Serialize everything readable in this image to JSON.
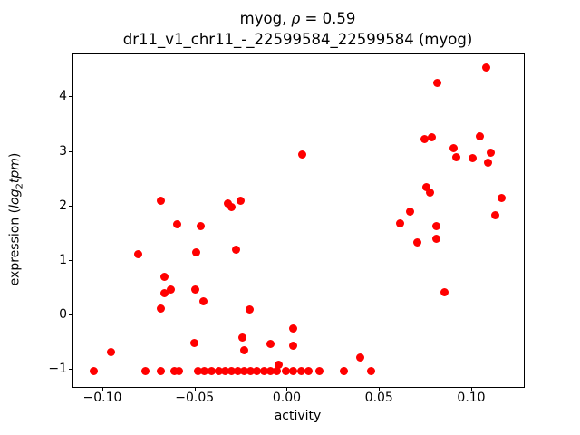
{
  "titles": {
    "line1_prefix": "myog, ",
    "line1_rho": "ρ",
    "line1_suffix": " = 0.59",
    "line2": "dr11_v1_chr11_-_22599584_22599584 (myog)",
    "ylabel_prefix": "expression (",
    "ylabel_math_main": "log",
    "ylabel_math_sub": "2",
    "ylabel_math_tail": "tpm",
    "ylabel_suffix": ")"
  },
  "chart_data": {
    "type": "scatter",
    "title": "myog, ρ = 0.59",
    "subtitle": "dr11_v1_chr11_-_22599584_22599584 (myog)",
    "xlabel": "activity",
    "ylabel": "expression (log2tpm)",
    "marker_color": "#ff0000",
    "marker_diameter_px": 9,
    "grid": false,
    "legend": null,
    "xlim": [
      -0.1162,
      0.128
    ],
    "ylim": [
      -1.315,
      4.79
    ],
    "xticks": {
      "values": [
        -0.1,
        -0.05,
        0.0,
        0.05,
        0.1
      ],
      "labels": [
        "−0.10",
        "−0.05",
        "0.00",
        "0.05",
        "0.10"
      ]
    },
    "yticks": {
      "values": [
        -1,
        0,
        1,
        2,
        3,
        4
      ],
      "labels": [
        "−1",
        "0",
        "1",
        "2",
        "3",
        "4"
      ]
    },
    "points": [
      [
        -0.105,
        -1.03
      ],
      [
        -0.096,
        -0.67
      ],
      [
        -0.081,
        1.13
      ],
      [
        -0.077,
        -1.03
      ],
      [
        -0.069,
        2.1
      ],
      [
        -0.0689,
        0.12
      ],
      [
        -0.0686,
        -1.03
      ],
      [
        -0.067,
        0.71
      ],
      [
        -0.0669,
        0.41
      ],
      [
        -0.0635,
        0.48
      ],
      [
        -0.0616,
        -1.03
      ],
      [
        -0.0599,
        1.67
      ],
      [
        -0.0591,
        -1.03
      ],
      [
        -0.0505,
        -0.5
      ],
      [
        -0.0499,
        0.47
      ],
      [
        -0.0495,
        1.16
      ],
      [
        -0.0486,
        -1.03
      ],
      [
        -0.0472,
        1.64
      ],
      [
        -0.0455,
        0.25
      ],
      [
        -0.0451,
        -1.03
      ],
      [
        -0.0412,
        -1.03
      ],
      [
        -0.0372,
        -1.03
      ],
      [
        -0.0338,
        -1.03
      ],
      [
        -0.0325,
        2.05
      ],
      [
        -0.0304,
        1.99
      ],
      [
        -0.0304,
        -1.03
      ],
      [
        -0.0282,
        1.2
      ],
      [
        -0.0269,
        -1.03
      ],
      [
        -0.0254,
        2.11
      ],
      [
        -0.0246,
        -0.41
      ],
      [
        -0.0238,
        -0.64
      ],
      [
        -0.0235,
        -1.03
      ],
      [
        -0.0205,
        0.1
      ],
      [
        -0.02,
        -1.03
      ],
      [
        -0.0166,
        -1.03
      ],
      [
        -0.0126,
        -1.03
      ],
      [
        -0.0093,
        -0.53
      ],
      [
        -0.0092,
        -1.03
      ],
      [
        -0.0058,
        -1.03
      ],
      [
        -0.0049,
        -0.91
      ],
      [
        -0.0008,
        -1.03
      ],
      [
        0.0031,
        -0.25
      ],
      [
        0.0031,
        -0.55
      ],
      [
        0.0031,
        -1.03
      ],
      [
        0.0075,
        -1.03
      ],
      [
        0.0077,
        2.95
      ],
      [
        0.0115,
        -1.03
      ],
      [
        0.0174,
        -1.03
      ],
      [
        0.0303,
        -1.03
      ],
      [
        0.0394,
        -0.78
      ],
      [
        0.0451,
        -1.03
      ],
      [
        0.061,
        1.69
      ],
      [
        0.0664,
        1.91
      ],
      [
        0.0705,
        1.34
      ],
      [
        0.0743,
        3.24
      ],
      [
        0.0754,
        2.35
      ],
      [
        0.0771,
        2.26
      ],
      [
        0.0781,
        3.26
      ],
      [
        0.0805,
        1.63
      ],
      [
        0.0808,
        1.4
      ],
      [
        0.0812,
        4.27
      ],
      [
        0.0848,
        0.43
      ],
      [
        0.0898,
        3.07
      ],
      [
        0.0915,
        2.91
      ],
      [
        0.1004,
        2.89
      ],
      [
        0.1043,
        3.28
      ],
      [
        0.1074,
        4.55
      ],
      [
        0.1087,
        2.81
      ],
      [
        0.1099,
        2.99
      ],
      [
        0.1123,
        1.83
      ],
      [
        0.1161,
        2.16
      ]
    ]
  }
}
